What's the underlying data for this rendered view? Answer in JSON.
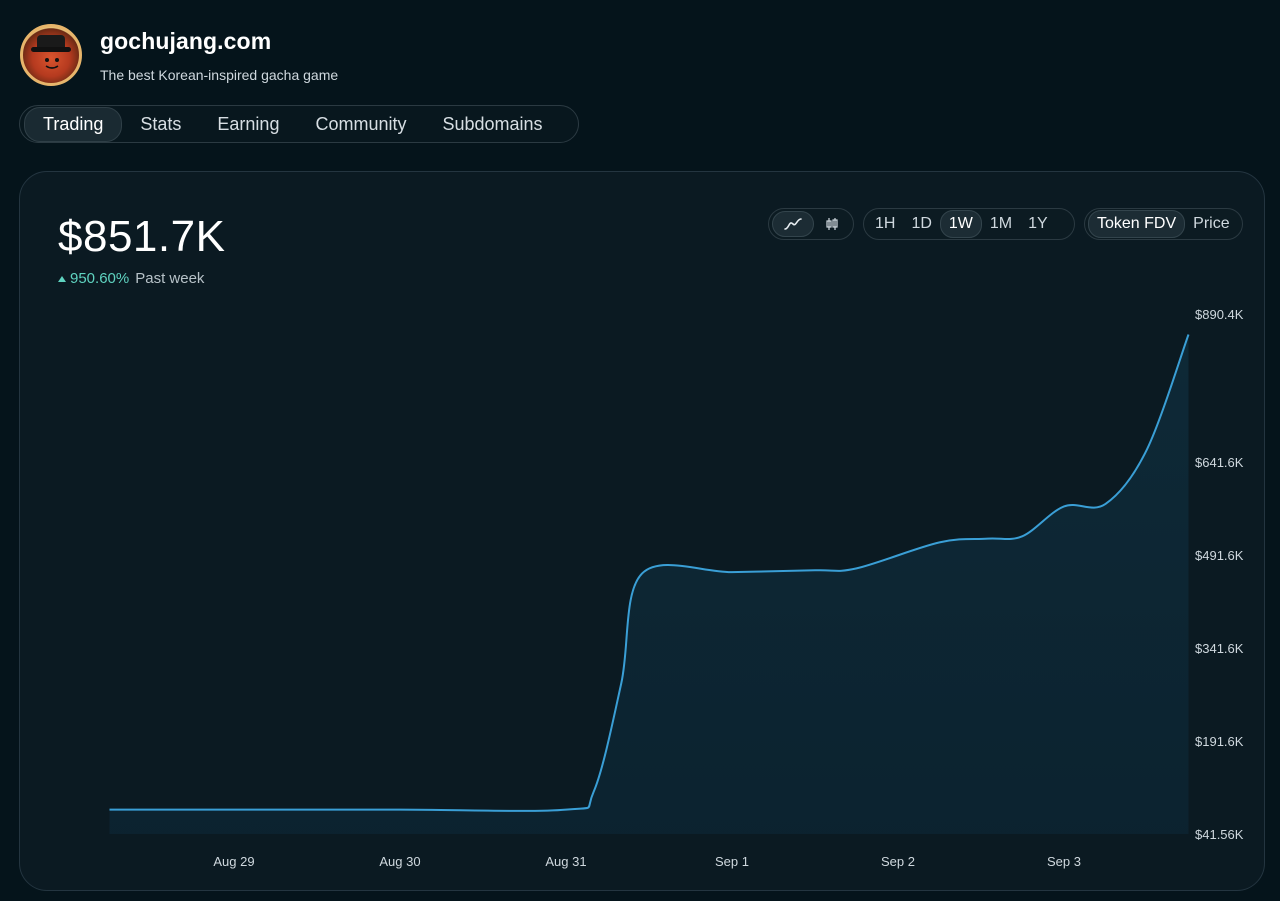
{
  "header": {
    "site_title": "gochujang.com",
    "site_subtitle": "The best Korean-inspired gacha game",
    "avatar_icon": "gochujang-mascot-avatar"
  },
  "tabs": [
    {
      "label": "Trading",
      "active": true
    },
    {
      "label": "Stats",
      "active": false
    },
    {
      "label": "Earning",
      "active": false
    },
    {
      "label": "Community",
      "active": false
    },
    {
      "label": "Subdomains",
      "active": false
    }
  ],
  "summary": {
    "value": "$851.7K",
    "change_pct": "950.60%",
    "change_period": "Past week",
    "change_color": "#5fd3c0"
  },
  "controls": {
    "chart_style": [
      {
        "icon": "line-chart-icon",
        "active": true
      },
      {
        "icon": "candlestick-icon",
        "active": false
      }
    ],
    "ranges": [
      {
        "label": "1H",
        "active": false
      },
      {
        "label": "1D",
        "active": false
      },
      {
        "label": "1W",
        "active": true
      },
      {
        "label": "1M",
        "active": false
      },
      {
        "label": "1Y",
        "active": false
      }
    ],
    "metrics": [
      {
        "label": "Token FDV",
        "active": true
      },
      {
        "label": "Price",
        "active": false
      }
    ]
  },
  "chart_data": {
    "type": "area",
    "line_color": "#3a9fd6",
    "y_ticks": [
      "$890.4K",
      "$641.6K",
      "$491.6K",
      "$341.6K",
      "$191.6K",
      "$41.56K"
    ],
    "y_tick_values": [
      890.4,
      641.6,
      491.6,
      341.6,
      191.6,
      41.56
    ],
    "x_ticks": [
      "Aug 29",
      "Aug 30",
      "Aug 31",
      "Sep 1",
      "Sep 2",
      "Sep 3"
    ],
    "x": [
      "Aug 28 06:00",
      "Aug 29 00:00",
      "Aug 30 00:00",
      "Aug 31 00:00",
      "Aug 31 04:00",
      "Aug 31 08:00",
      "Aug 31 11:00",
      "Sep 1 00:00",
      "Sep 1 12:00",
      "Sep 1 18:00",
      "Sep 2 06:00",
      "Sep 2 13:00",
      "Sep 2 18:00",
      "Sep 3 00:00",
      "Sep 3 06:00",
      "Sep 3 12:00",
      "Sep 3 18:00"
    ],
    "values": [
      81,
      81,
      81,
      81,
      110,
      285,
      462,
      464,
      467,
      470,
      512,
      518,
      522,
      570,
      574,
      663,
      856
    ],
    "unit": "$K"
  }
}
